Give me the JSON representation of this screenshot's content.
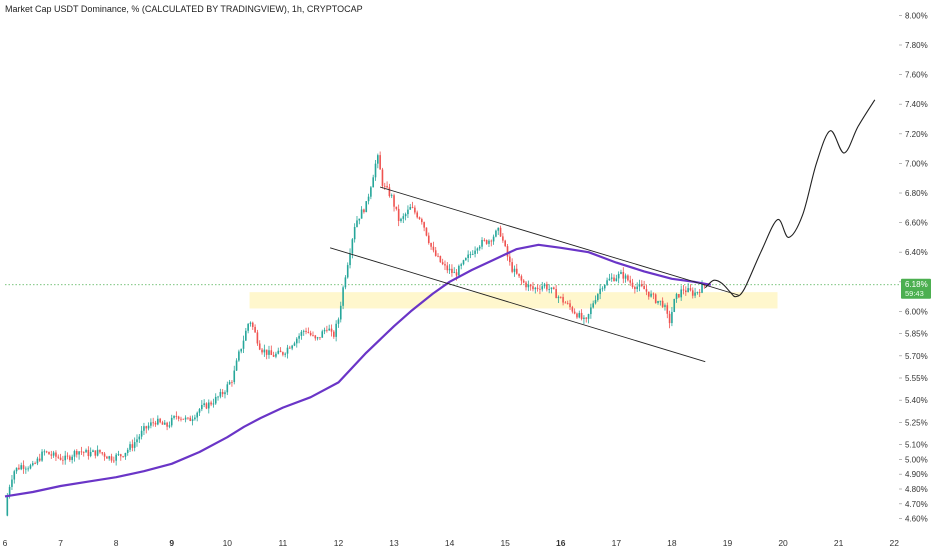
{
  "title": "Market Cap USDT Dominance, % (CALCULATED BY TRADINGVIEW), 1h, CRYPTOCAP",
  "price_tag": {
    "value": "6.18%",
    "countdown": "59:43"
  },
  "colors": {
    "bull": "#26a69a",
    "bear": "#ef5350",
    "ma": "#6a35c7",
    "zone": "#fff6c8",
    "tag": "#4caf50",
    "price_line": "#4caf50",
    "channel": "#222222",
    "projection": "#222222",
    "axis_text": "#333333"
  },
  "chart_data": {
    "type": "candlestick",
    "y_unit": "%",
    "ylim": [
      4.55,
      8.05
    ],
    "xlim": [
      6.0,
      22.05
    ],
    "y_ticks": [
      "4.60%",
      "4.70%",
      "4.80%",
      "4.90%",
      "5.00%",
      "5.10%",
      "5.25%",
      "5.40%",
      "5.55%",
      "5.70%",
      "5.85%",
      "6.00%",
      "6.20%",
      "6.40%",
      "6.60%",
      "6.80%",
      "7.00%",
      "7.20%",
      "7.40%",
      "7.60%",
      "7.80%",
      "8.00%"
    ],
    "y_tick_values": [
      4.6,
      4.7,
      4.8,
      4.9,
      5.0,
      5.1,
      5.25,
      5.4,
      5.55,
      5.7,
      5.85,
      6.0,
      6.2,
      6.4,
      6.6,
      6.8,
      7.0,
      7.2,
      7.4,
      7.6,
      7.8,
      8.0
    ],
    "x_ticks": [
      "6",
      "7",
      "8",
      "9",
      "10",
      "11",
      "12",
      "13",
      "14",
      "15",
      "16",
      "17",
      "18",
      "19",
      "20",
      "21",
      "22"
    ],
    "x_tick_values": [
      6,
      7,
      8,
      9,
      10,
      11,
      12,
      13,
      14,
      15,
      16,
      17,
      18,
      19,
      20,
      21,
      22
    ],
    "x_bold_ticks": [
      "9",
      "16"
    ],
    "candles": {
      "start": 6.0,
      "end": 18.6,
      "close_points": [
        [
          6.0,
          4.62
        ],
        [
          6.05,
          4.78
        ],
        [
          6.15,
          4.92
        ],
        [
          6.3,
          4.96
        ],
        [
          6.5,
          4.95
        ],
        [
          6.7,
          5.05
        ],
        [
          6.9,
          5.02
        ],
        [
          7.1,
          5.0
        ],
        [
          7.3,
          5.06
        ],
        [
          7.5,
          5.04
        ],
        [
          7.7,
          5.05
        ],
        [
          7.9,
          5.01
        ],
        [
          8.1,
          5.03
        ],
        [
          8.3,
          5.1
        ],
        [
          8.5,
          5.2
        ],
        [
          8.7,
          5.26
        ],
        [
          8.9,
          5.22
        ],
        [
          9.1,
          5.3
        ],
        [
          9.3,
          5.26
        ],
        [
          9.5,
          5.34
        ],
        [
          9.7,
          5.38
        ],
        [
          9.9,
          5.44
        ],
        [
          10.1,
          5.55
        ],
        [
          10.2,
          5.7
        ],
        [
          10.3,
          5.82
        ],
        [
          10.4,
          5.95
        ],
        [
          10.5,
          5.85
        ],
        [
          10.6,
          5.75
        ],
        [
          10.8,
          5.7
        ],
        [
          11.0,
          5.72
        ],
        [
          11.2,
          5.8
        ],
        [
          11.4,
          5.88
        ],
        [
          11.6,
          5.8
        ],
        [
          11.8,
          5.9
        ],
        [
          11.9,
          5.82
        ],
        [
          12.0,
          5.95
        ],
        [
          12.1,
          6.2
        ],
        [
          12.2,
          6.4
        ],
        [
          12.3,
          6.6
        ],
        [
          12.5,
          6.72
        ],
        [
          12.7,
          7.05
        ],
        [
          12.8,
          6.85
        ],
        [
          12.95,
          6.78
        ],
        [
          13.1,
          6.6
        ],
        [
          13.3,
          6.7
        ],
        [
          13.5,
          6.62
        ],
        [
          13.7,
          6.4
        ],
        [
          13.9,
          6.3
        ],
        [
          14.1,
          6.25
        ],
        [
          14.3,
          6.35
        ],
        [
          14.5,
          6.45
        ],
        [
          14.7,
          6.48
        ],
        [
          14.9,
          6.55
        ],
        [
          15.0,
          6.42
        ],
        [
          15.1,
          6.3
        ],
        [
          15.3,
          6.2
        ],
        [
          15.5,
          6.15
        ],
        [
          15.7,
          6.18
        ],
        [
          15.9,
          6.12
        ],
        [
          16.1,
          6.05
        ],
        [
          16.3,
          5.98
        ],
        [
          16.45,
          5.92
        ],
        [
          16.6,
          6.08
        ],
        [
          16.75,
          6.18
        ],
        [
          16.9,
          6.22
        ],
        [
          17.1,
          6.25
        ],
        [
          17.3,
          6.18
        ],
        [
          17.5,
          6.15
        ],
        [
          17.7,
          6.08
        ],
        [
          17.85,
          6.05
        ],
        [
          17.95,
          5.92
        ],
        [
          18.05,
          6.08
        ],
        [
          18.2,
          6.15
        ],
        [
          18.4,
          6.12
        ],
        [
          18.6,
          6.18
        ]
      ]
    },
    "moving_average": [
      [
        6.0,
        4.75
      ],
      [
        6.5,
        4.78
      ],
      [
        7.0,
        4.82
      ],
      [
        7.5,
        4.85
      ],
      [
        8.0,
        4.88
      ],
      [
        8.5,
        4.92
      ],
      [
        9.0,
        4.97
      ],
      [
        9.5,
        5.05
      ],
      [
        10.0,
        5.15
      ],
      [
        10.3,
        5.22
      ],
      [
        10.6,
        5.28
      ],
      [
        11.0,
        5.35
      ],
      [
        11.5,
        5.42
      ],
      [
        12.0,
        5.52
      ],
      [
        12.5,
        5.72
      ],
      [
        13.0,
        5.9
      ],
      [
        13.3,
        6.0
      ],
      [
        13.7,
        6.12
      ],
      [
        14.0,
        6.2
      ],
      [
        14.4,
        6.28
      ],
      [
        14.8,
        6.35
      ],
      [
        15.2,
        6.42
      ],
      [
        15.6,
        6.45
      ],
      [
        16.0,
        6.43
      ],
      [
        16.5,
        6.4
      ],
      [
        17.0,
        6.33
      ],
      [
        17.5,
        6.27
      ],
      [
        18.0,
        6.22
      ],
      [
        18.4,
        6.2
      ],
      [
        18.7,
        6.18
      ]
    ],
    "channel_upper": [
      [
        12.75,
        6.84
      ],
      [
        19.2,
        6.11
      ]
    ],
    "channel_lower": [
      [
        11.85,
        6.43
      ],
      [
        18.6,
        5.66
      ]
    ],
    "support_zone": {
      "x": [
        10.4,
        19.9
      ],
      "y": [
        6.02,
        6.13
      ]
    },
    "current_price": 6.18,
    "projection": [
      [
        18.6,
        6.16
      ],
      [
        18.75,
        6.21
      ],
      [
        18.9,
        6.19
      ],
      [
        19.05,
        6.13
      ],
      [
        19.15,
        6.1
      ],
      [
        19.3,
        6.15
      ],
      [
        19.6,
        6.4
      ],
      [
        19.9,
        6.62
      ],
      [
        20.1,
        6.5
      ],
      [
        20.35,
        6.65
      ],
      [
        20.6,
        7.0
      ],
      [
        20.85,
        7.22
      ],
      [
        21.1,
        7.07
      ],
      [
        21.35,
        7.25
      ],
      [
        21.65,
        7.43
      ]
    ]
  }
}
